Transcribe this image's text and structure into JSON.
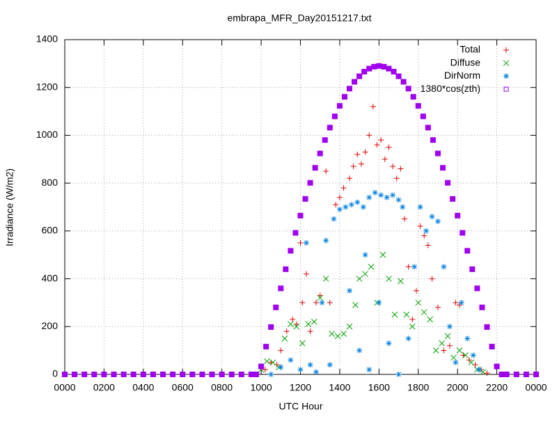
{
  "chart_data": {
    "type": "scatter",
    "title": "embrapa_MFR_Day20151217.txt",
    "x_label": "UTC Hour",
    "y_label": "Irradiance (W/m2)",
    "xlim": [
      0,
      24
    ],
    "ylim": [
      0,
      1400
    ],
    "xticks": [
      {
        "value": 0,
        "label": "0000"
      },
      {
        "value": 2,
        "label": "0200"
      },
      {
        "value": 4,
        "label": "0400"
      },
      {
        "value": 6,
        "label": "0600"
      },
      {
        "value": 8,
        "label": "0800"
      },
      {
        "value": 10,
        "label": "1000"
      },
      {
        "value": 12,
        "label": "1200"
      },
      {
        "value": 14,
        "label": "1400"
      },
      {
        "value": 16,
        "label": "1600"
      },
      {
        "value": 18,
        "label": "1800"
      },
      {
        "value": 20,
        "label": "2000"
      },
      {
        "value": 22,
        "label": "2200"
      },
      {
        "value": 24,
        "label": "0000"
      }
    ],
    "yticks": [
      0,
      200,
      400,
      600,
      800,
      1000,
      1200,
      1400
    ],
    "grid": true,
    "legend": "top-right",
    "series": [
      {
        "name": "Total",
        "color": "#e00000",
        "marker": "plus",
        "x": [
          10.2,
          10.5,
          10.8,
          11.0,
          11.3,
          11.6,
          11.8,
          12.0,
          12.1,
          12.3,
          12.5,
          12.8,
          13.0,
          13.3,
          13.5,
          13.8,
          14.0,
          14.2,
          14.5,
          14.7,
          14.9,
          15.1,
          15.3,
          15.5,
          15.7,
          15.9,
          16.1,
          16.3,
          16.5,
          16.7,
          16.9,
          17.1,
          17.3,
          17.5,
          17.7,
          17.9,
          18.1,
          18.3,
          18.5,
          18.7,
          19.0,
          19.3,
          19.6,
          19.9,
          20.1,
          20.3,
          20.6,
          20.9,
          21.2,
          21.5
        ],
        "values": [
          20,
          50,
          40,
          100,
          180,
          230,
          210,
          550,
          300,
          420,
          180,
          300,
          330,
          850,
          300,
          710,
          740,
          780,
          820,
          870,
          920,
          880,
          930,
          1000,
          1120,
          960,
          980,
          900,
          950,
          870,
          820,
          860,
          650,
          450,
          230,
          350,
          620,
          580,
          540,
          400,
          280,
          100,
          120,
          300,
          290,
          80,
          60,
          40,
          20,
          5
        ]
      },
      {
        "name": "Diffuse",
        "color": "#00a000",
        "marker": "cross",
        "x": [
          10.0,
          10.3,
          10.6,
          10.9,
          11.2,
          11.5,
          11.8,
          12.1,
          12.4,
          12.7,
          13.0,
          13.3,
          13.6,
          13.9,
          14.2,
          14.5,
          14.8,
          15.0,
          15.3,
          15.6,
          15.9,
          16.2,
          16.5,
          16.8,
          17.1,
          17.4,
          17.7,
          18.0,
          18.3,
          18.6,
          18.9,
          19.2,
          19.5,
          19.8,
          20.1,
          20.4,
          20.7,
          21.0,
          21.3
        ],
        "values": [
          20,
          55,
          50,
          30,
          150,
          210,
          200,
          130,
          210,
          220,
          320,
          400,
          170,
          160,
          170,
          200,
          290,
          400,
          420,
          450,
          300,
          500,
          400,
          250,
          390,
          250,
          200,
          300,
          260,
          230,
          100,
          130,
          160,
          70,
          100,
          80,
          50,
          20,
          10
        ]
      },
      {
        "name": "DirNorm",
        "color": "#0080e0",
        "marker": "star",
        "x": [
          10.5,
          11.0,
          11.5,
          12.0,
          12.3,
          12.5,
          12.8,
          13.1,
          13.3,
          13.5,
          13.7,
          14.0,
          14.3,
          14.6,
          14.9,
          15.2,
          15.5,
          15.8,
          16.1,
          16.4,
          16.7,
          17.0,
          17.2,
          17.5,
          17.8,
          18.1,
          18.4,
          18.7,
          19.0,
          19.3,
          19.6,
          19.9,
          20.2,
          20.5,
          20.8,
          21.1,
          14.5,
          15.0,
          15.5,
          16.0,
          16.5,
          17.0,
          15.3
        ],
        "values": [
          0,
          30,
          60,
          20,
          550,
          40,
          10,
          300,
          560,
          40,
          650,
          690,
          700,
          710,
          720,
          700,
          740,
          760,
          750,
          740,
          750,
          730,
          700,
          150,
          450,
          700,
          600,
          660,
          640,
          450,
          200,
          50,
          300,
          150,
          80,
          20,
          350,
          100,
          20,
          300,
          130,
          0,
          500
        ]
      },
      {
        "name": "1380*cos(zth)",
        "color": "#a000f0",
        "marker": "square",
        "x": [
          0,
          0.5,
          1,
          1.5,
          2,
          2.5,
          3,
          3.5,
          4,
          4.5,
          5,
          5.5,
          6,
          6.5,
          7,
          7.5,
          8,
          8.5,
          9,
          9.5,
          9.75,
          10,
          10.25,
          10.5,
          10.75,
          11,
          11.25,
          11.5,
          11.75,
          12,
          12.25,
          12.5,
          12.75,
          13,
          13.25,
          13.5,
          13.75,
          14,
          14.25,
          14.5,
          14.75,
          15,
          15.25,
          15.5,
          15.75,
          16,
          16.25,
          16.5,
          16.75,
          17,
          17.25,
          17.5,
          17.75,
          18,
          18.25,
          18.5,
          18.75,
          19,
          19.25,
          19.5,
          19.75,
          20,
          20.25,
          20.5,
          20.75,
          21,
          21.25,
          21.5,
          21.75,
          22,
          22.25,
          22.5,
          23,
          23.5,
          24
        ],
        "values": [
          0,
          0,
          0,
          0,
          0,
          0,
          0,
          0,
          0,
          0,
          0,
          0,
          0,
          0,
          0,
          0,
          0,
          0,
          0,
          0,
          0,
          33,
          116,
          198,
          280,
          360,
          440,
          517,
          592,
          664,
          734,
          801,
          864,
          924,
          980,
          1032,
          1079,
          1123,
          1161,
          1195,
          1224,
          1247,
          1266,
          1279,
          1287,
          1290,
          1287,
          1279,
          1266,
          1247,
          1224,
          1195,
          1161,
          1123,
          1079,
          1032,
          980,
          924,
          864,
          801,
          734,
          664,
          592,
          517,
          440,
          360,
          280,
          198,
          116,
          33,
          0,
          0,
          0,
          0,
          0
        ]
      }
    ]
  }
}
